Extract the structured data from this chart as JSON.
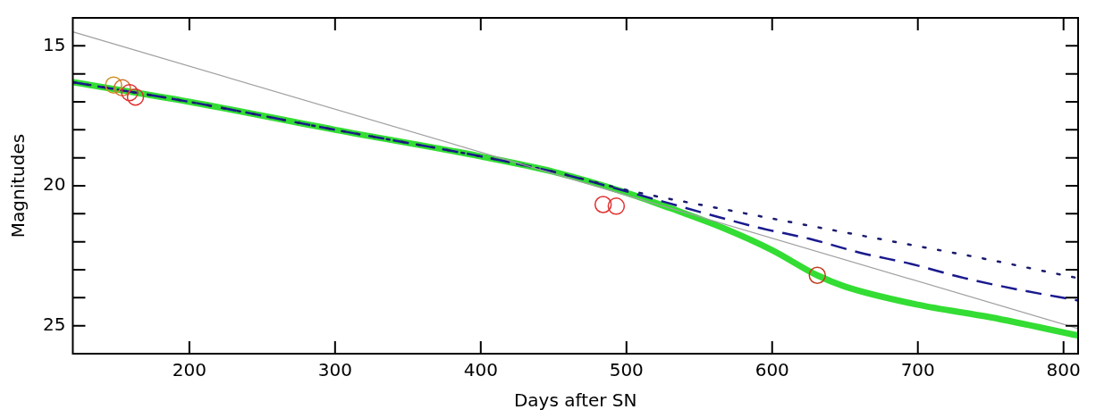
{
  "chart_data": {
    "type": "line",
    "xlabel": "Days after SN",
    "ylabel": "Magnitudes",
    "xlim": [
      120,
      810
    ],
    "ylim": [
      26,
      14
    ],
    "xticks": [
      200,
      300,
      400,
      500,
      600,
      700,
      800
    ],
    "yticks": [
      {
        "value": 14,
        "label": null
      },
      15,
      {
        "value": 16,
        "label": null
      },
      {
        "value": 17,
        "label": null
      },
      {
        "value": 18,
        "label": null
      },
      {
        "value": 19,
        "label": null
      },
      20,
      {
        "value": 21,
        "label": null
      },
      {
        "value": 22,
        "label": null
      },
      {
        "value": 23,
        "label": null
      },
      {
        "value": 24,
        "label": null
      },
      25,
      {
        "value": 26,
        "label": null
      }
    ],
    "grid": false,
    "legend": false,
    "series": [
      {
        "color": "#a0a0a0",
        "line_style": "solid",
        "marker": "none",
        "x": [
          120,
          810
        ],
        "values": [
          14.5,
          25.1
        ]
      },
      {
        "color": "#1a1a6e",
        "line_style": "dotted",
        "marker": "none",
        "x": [
          120,
          200,
          300,
          400,
          450,
          500,
          570,
          633,
          694,
          745,
          794,
          810
        ],
        "values": [
          16.3,
          17.0,
          18.0,
          18.95,
          19.5,
          20.15,
          20.87,
          21.5,
          22.1,
          22.6,
          23.13,
          23.3
        ]
      },
      {
        "color": "#1a1a8e",
        "line_style": "dashed",
        "marker": "none",
        "x": [
          120,
          200,
          300,
          400,
          450,
          500,
          555,
          591,
          626,
          661,
          696,
          732,
          768,
          810
        ],
        "values": [
          16.3,
          17.0,
          18.0,
          18.95,
          19.5,
          20.2,
          21.0,
          21.5,
          21.9,
          22.4,
          22.8,
          23.3,
          23.7,
          24.1
        ]
      },
      {
        "color": "#33dd33",
        "line_style": "solid",
        "marker": "none",
        "x": [
          120,
          200,
          300,
          400,
          450,
          500,
          530,
          566,
          600,
          631,
          650,
          700,
          750,
          810
        ],
        "values": [
          16.3,
          17.0,
          18.0,
          18.95,
          19.5,
          20.25,
          20.8,
          21.5,
          22.3,
          23.2,
          23.6,
          24.25,
          24.7,
          25.35
        ]
      },
      {
        "type": "scatter",
        "marker": "circle",
        "colors": [
          "#d09020",
          "#d07030",
          "#e03030",
          "#e03030",
          "#e03030",
          "#e03030",
          "#c04020"
        ],
        "x": [
          148,
          154,
          159,
          163,
          484,
          493,
          631
        ],
        "values": [
          16.4,
          16.5,
          16.67,
          16.83,
          20.67,
          20.73,
          23.2
        ]
      }
    ]
  }
}
